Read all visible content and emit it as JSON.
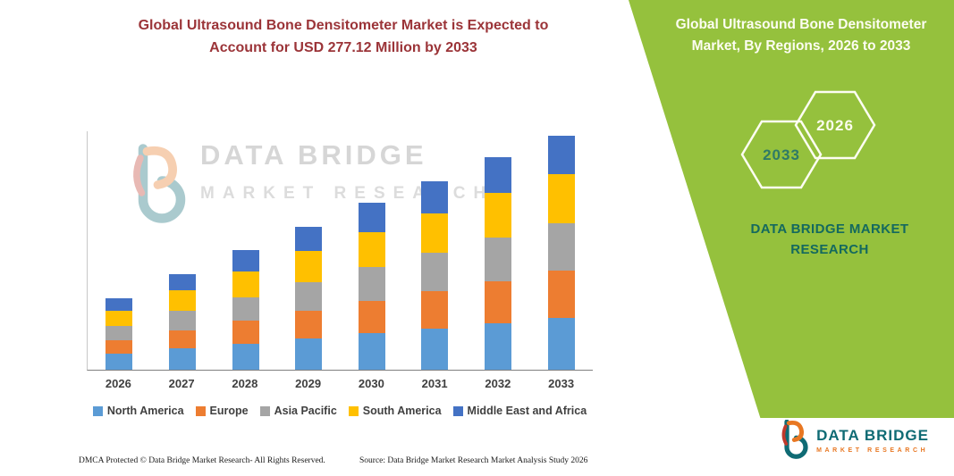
{
  "left_panel": {
    "title": "Global Ultrasound Bone Densitometer Market is Expected to Account for USD 277.12 Million by 2033",
    "watermark_line1": "DATA BRIDGE",
    "watermark_line2": "MARKET RESEARCH",
    "footer_dmca": "DMCA Protected © Data Bridge Market Research-  All Rights Reserved.",
    "footer_source": "Source: Data Bridge Market Research  Market Analysis Study 2026"
  },
  "right_panel": {
    "title": "Global Ultrasound Bone Densitometer Market, By Regions, 2026 to 2033",
    "hexagon_back_label": "2033",
    "hexagon_front_label": "2026",
    "brand_text": "DATA BRIDGE MARKET RESEARCH",
    "background_color": "#95C13D",
    "brand_color": "#14695E"
  },
  "logo": {
    "name": "DATA BRIDGE",
    "tagline": "MARKET RESEARCH",
    "name_color": "#0F6B74",
    "tagline_color": "#E87722"
  },
  "chart_data": {
    "type": "bar",
    "stacked": true,
    "title": "Global Ultrasound Bone Densitometer Market is Expected to Account for USD 277.12 Million by 2033",
    "unit": "USD Million",
    "total_2033": "USD 277.12 Million",
    "categories": [
      "2026",
      "2027",
      "2028",
      "2029",
      "2030",
      "2031",
      "2032",
      "2033"
    ],
    "series": [
      {
        "name": "North America",
        "color": "#5B9BD5",
        "values": [
          19,
          25,
          31,
          37,
          43,
          49,
          55,
          61
        ]
      },
      {
        "name": "Europe",
        "color": "#ED7D31",
        "values": [
          16,
          22,
          27,
          33,
          38,
          44,
          50,
          56
        ]
      },
      {
        "name": "Asia Pacific",
        "color": "#A5A5A5",
        "values": [
          17,
          23,
          28,
          34,
          40,
          45,
          51,
          56
        ]
      },
      {
        "name": "South America",
        "color": "#FFC000",
        "values": [
          18,
          24,
          30,
          36,
          42,
          47,
          53,
          58
        ]
      },
      {
        "name": "Middle East and Africa",
        "color": "#4472C4",
        "values": [
          14,
          19,
          25,
          29,
          34,
          38,
          42,
          46.12
        ]
      }
    ],
    "totals": [
      84,
      113,
      141,
      169,
      197,
      223,
      251,
      277.12
    ],
    "xlabel": "",
    "ylabel": "",
    "ylim": [
      0,
      283
    ],
    "grid": false,
    "legend_position": "bottom"
  }
}
